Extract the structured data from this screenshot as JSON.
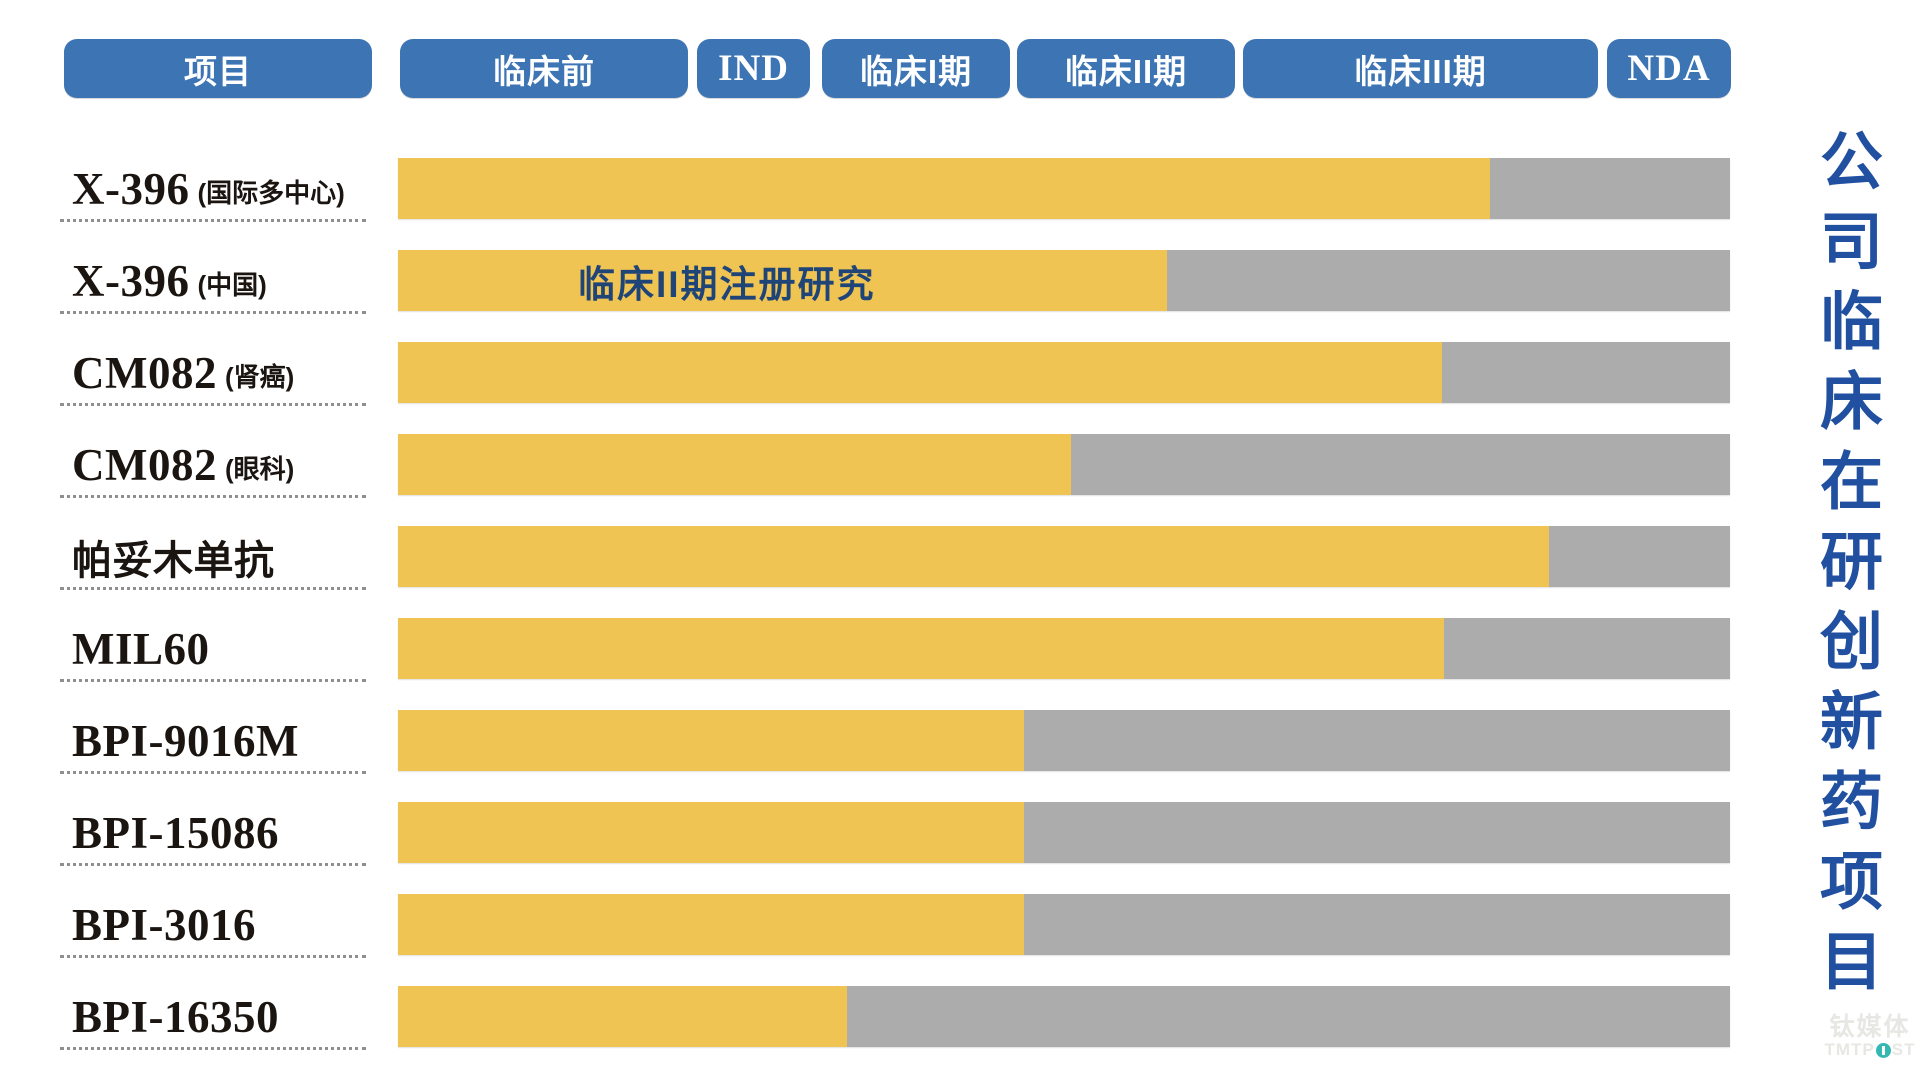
{
  "header": {
    "project_column": "项目"
  },
  "chart_data": {
    "type": "bar",
    "title": "公司临床在研创新药项目",
    "orientation": "horizontal",
    "legend_position": "none",
    "grid": false,
    "stages": [
      "临床前",
      "IND",
      "临床I期",
      "临床II期",
      "临床III期",
      "NDA"
    ],
    "xlim_stages": [
      "临床前",
      "NDA"
    ],
    "colors": {
      "completed": "#F0C452",
      "remaining": "#ACACAC",
      "header": "#3C74B4"
    },
    "projects": [
      {
        "name": "X-396",
        "sub": "(国际多中心)",
        "progress_pct": 82.0,
        "reached": "临床III期",
        "annotation": ""
      },
      {
        "name": "X-396",
        "sub": "(中国)",
        "progress_pct": 57.7,
        "reached": "临床II期",
        "annotation": "临床II期注册研究"
      },
      {
        "name": "CM082",
        "sub": "(肾癌)",
        "progress_pct": 78.4,
        "reached": "临床III期",
        "annotation": ""
      },
      {
        "name": "CM082",
        "sub": "(眼科)",
        "progress_pct": 50.5,
        "reached": "临床II期",
        "annotation": ""
      },
      {
        "name": "帕妥木单抗",
        "sub": "",
        "progress_pct": 86.4,
        "reached": "临床III期",
        "annotation": ""
      },
      {
        "name": "MIL60",
        "sub": "",
        "progress_pct": 78.5,
        "reached": "临床III期",
        "annotation": ""
      },
      {
        "name": "BPI-9016M",
        "sub": "",
        "progress_pct": 47.0,
        "reached": "临床II期",
        "annotation": ""
      },
      {
        "name": "BPI-15086",
        "sub": "",
        "progress_pct": 47.0,
        "reached": "临床II期",
        "annotation": ""
      },
      {
        "name": "BPI-3016",
        "sub": "",
        "progress_pct": 47.0,
        "reached": "临床II期",
        "annotation": ""
      },
      {
        "name": "BPI-16350",
        "sub": "",
        "progress_pct": 33.7,
        "reached": "临床I期",
        "annotation": ""
      }
    ]
  },
  "watermark": {
    "brand_cn": "钛媒体",
    "brand_en_pre": "TMTP",
    "brand_en_post": "ST"
  }
}
